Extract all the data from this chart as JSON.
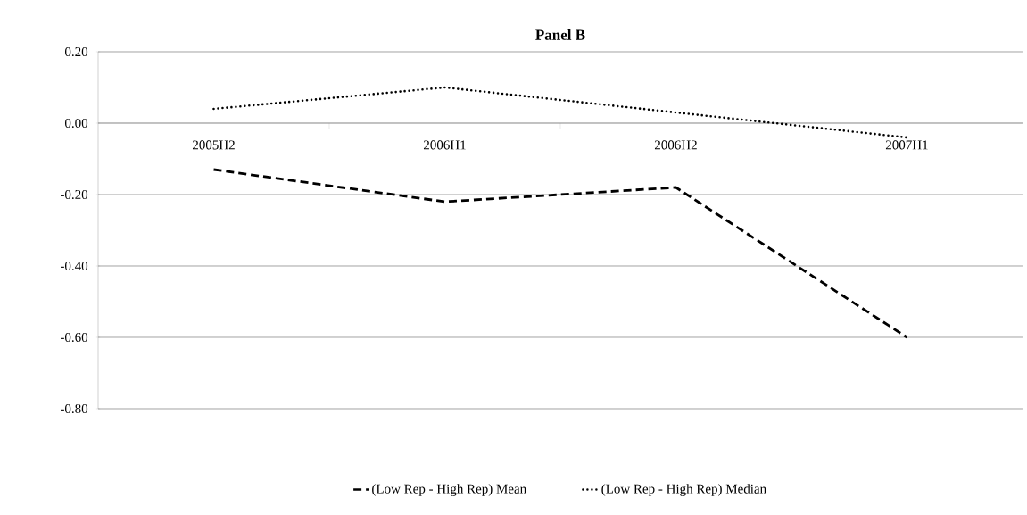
{
  "chart_data": {
    "type": "line",
    "title": "Panel B",
    "categories": [
      "2005H2",
      "2006H1",
      "2006H2",
      "2007H1"
    ],
    "series": [
      {
        "name": "(Low Rep - High Rep) Mean",
        "color": "#000000",
        "line_style": "dashed",
        "values": [
          -0.13,
          -0.22,
          -0.18,
          -0.6
        ]
      },
      {
        "name": "(Low Rep - High Rep) Median",
        "color": "#000000",
        "line_style": "dotted",
        "values": [
          0.04,
          0.1,
          0.03,
          -0.04
        ]
      }
    ],
    "ylim": [
      -0.8,
      0.2
    ],
    "yticks": [
      {
        "value": -0.8,
        "label": "-0.80"
      },
      {
        "value": -0.6,
        "label": "-0.60"
      },
      {
        "value": -0.4,
        "label": "-0.40"
      },
      {
        "value": -0.2,
        "label": "-0.20"
      },
      {
        "value": 0,
        "label": "0.00"
      },
      {
        "value": 0.2,
        "label": "0.20"
      }
    ],
    "grid": "y",
    "legend": "bottom",
    "marker": "none"
  }
}
